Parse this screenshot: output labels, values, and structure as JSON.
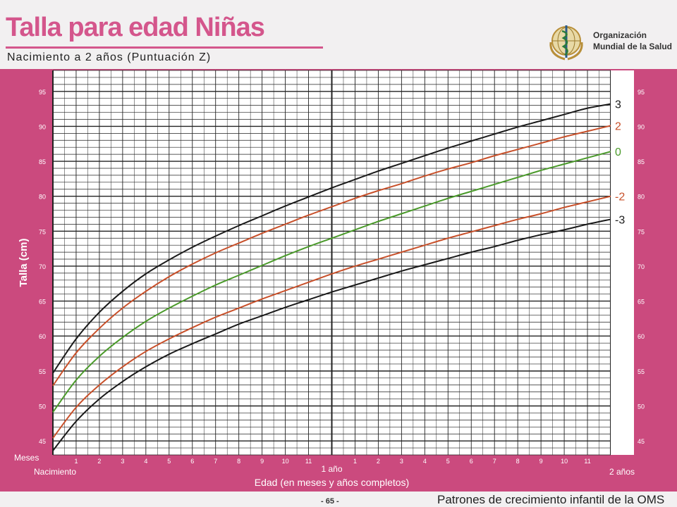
{
  "header": {
    "title": "Talla para edad Niñas",
    "subtitle": "Nacimiento a 2 años (Puntuación Z)",
    "org_line1": "Organización",
    "org_line2": "Mundial de la Salud"
  },
  "footer": {
    "page": "- 65 -",
    "source": "Patrones de crecimiento infantil de la OMS"
  },
  "colors": {
    "panel": "#cb4a7e",
    "sd3": "#1a1a1a",
    "sd2": "#c8502a",
    "median": "#4a9a2a"
  },
  "chart_data": {
    "type": "line",
    "ylabel": "Talla (cm)",
    "xlabel": "Edad (en meses y años completos)",
    "x_unit_label": "Meses",
    "x_start_label": "Nacimiento",
    "x_year1_label": "1 año",
    "x_year2_label": "2 años",
    "x_month_ticks": [
      "1",
      "2",
      "3",
      "4",
      "5",
      "6",
      "7",
      "8",
      "9",
      "10",
      "11"
    ],
    "y_ticks": [
      "45",
      "50",
      "55",
      "60",
      "65",
      "70",
      "75",
      "80",
      "85",
      "90",
      "95"
    ],
    "xlim": [
      0,
      24
    ],
    "ylim": [
      43,
      98
    ],
    "grid": true,
    "x": [
      0,
      1,
      2,
      3,
      4,
      5,
      6,
      7,
      8,
      9,
      10,
      11,
      12,
      13,
      14,
      15,
      16,
      17,
      18,
      19,
      20,
      21,
      22,
      23,
      24
    ],
    "series": [
      {
        "name": "3",
        "color_key": "sd3",
        "values": [
          54.7,
          59.6,
          63.4,
          66.4,
          68.9,
          70.9,
          72.7,
          74.3,
          75.8,
          77.2,
          78.6,
          79.9,
          81.2,
          82.4,
          83.6,
          84.7,
          85.8,
          86.9,
          87.9,
          88.9,
          89.9,
          90.8,
          91.7,
          92.6,
          93.2
        ]
      },
      {
        "name": "2",
        "color_key": "sd2",
        "values": [
          52.9,
          57.6,
          61.1,
          64.0,
          66.4,
          68.5,
          70.3,
          71.9,
          73.3,
          74.7,
          76.0,
          77.3,
          78.5,
          79.7,
          80.8,
          81.8,
          82.9,
          83.9,
          84.8,
          85.8,
          86.7,
          87.6,
          88.5,
          89.3,
          90.1
        ]
      },
      {
        "name": "0",
        "color_key": "median",
        "values": [
          49.1,
          53.7,
          57.1,
          59.8,
          62.1,
          64.0,
          65.7,
          67.3,
          68.7,
          70.1,
          71.5,
          72.8,
          74.0,
          75.2,
          76.4,
          77.5,
          78.6,
          79.7,
          80.7,
          81.7,
          82.7,
          83.7,
          84.6,
          85.5,
          86.4
        ]
      },
      {
        "name": "-2",
        "color_key": "sd2",
        "values": [
          45.4,
          49.8,
          53.0,
          55.6,
          57.8,
          59.6,
          61.2,
          62.7,
          64.0,
          65.3,
          66.5,
          67.7,
          68.9,
          70.0,
          71.0,
          72.0,
          73.0,
          74.0,
          74.9,
          75.8,
          76.7,
          77.5,
          78.4,
          79.2,
          80.0
        ]
      },
      {
        "name": "-3",
        "color_key": "sd3",
        "values": [
          43.6,
          47.8,
          51.0,
          53.5,
          55.6,
          57.4,
          58.9,
          60.3,
          61.7,
          62.9,
          64.1,
          65.2,
          66.3,
          67.3,
          68.3,
          69.3,
          70.2,
          71.1,
          72.0,
          72.8,
          73.7,
          74.5,
          75.2,
          76.0,
          76.7
        ]
      }
    ]
  }
}
